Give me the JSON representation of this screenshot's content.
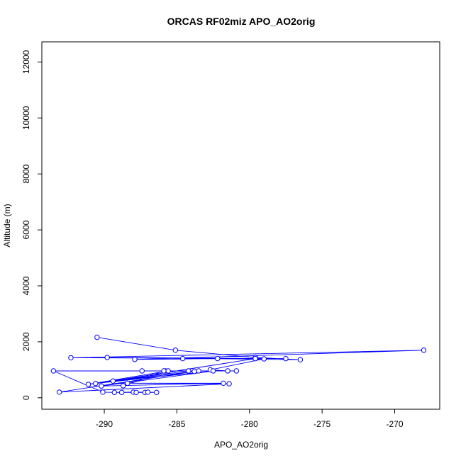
{
  "chart_data": {
    "type": "line",
    "title": "ORCAS RF02miz APO_AO2orig",
    "xlabel": "APO_AO2orig",
    "ylabel": "Altitude (m)",
    "xlim": [
      -294.3,
      -266.9
    ],
    "ylim": [
      -410,
      12720
    ],
    "x_ticks": [
      -290,
      -285,
      -280,
      -275,
      -270
    ],
    "y_ticks": [
      0,
      2000,
      4000,
      6000,
      8000,
      10000,
      12000
    ],
    "marker": "open-circle",
    "line_color": "#0000ff",
    "grid": false,
    "series": [
      {
        "points": [
          {
            "x": -290.5,
            "y": 2160
          },
          {
            "x": -285.1,
            "y": 1700
          },
          {
            "x": -279.6,
            "y": 1440
          },
          {
            "x": -276.5,
            "y": 1360
          },
          {
            "x": -289.8,
            "y": 1440
          },
          {
            "x": -277.5,
            "y": 1400
          },
          {
            "x": -292.3,
            "y": 1430
          },
          {
            "x": -268.0,
            "y": 1700
          },
          {
            "x": -287.9,
            "y": 1370
          },
          {
            "x": -282.2,
            "y": 1400
          },
          {
            "x": -284.6,
            "y": 1400
          },
          {
            "x": -279.0,
            "y": 1390
          },
          {
            "x": -282.7,
            "y": 1000
          },
          {
            "x": -281.5,
            "y": 960
          },
          {
            "x": -287.4,
            "y": 960
          },
          {
            "x": -283.5,
            "y": 960
          },
          {
            "x": -280.9,
            "y": 960
          },
          {
            "x": -285.8,
            "y": 960
          },
          {
            "x": -284.2,
            "y": 960
          },
          {
            "x": -289.4,
            "y": 600
          },
          {
            "x": -279.6,
            "y": 1400
          },
          {
            "x": -290.6,
            "y": 510
          },
          {
            "x": -282.5,
            "y": 960
          },
          {
            "x": -290.2,
            "y": 420
          },
          {
            "x": -281.8,
            "y": 520
          },
          {
            "x": -288.4,
            "y": 520
          },
          {
            "x": -281.4,
            "y": 500
          },
          {
            "x": -293.1,
            "y": 200
          },
          {
            "x": -283.8,
            "y": 940
          },
          {
            "x": -291.1,
            "y": 480
          },
          {
            "x": -285.6,
            "y": 960
          },
          {
            "x": -288.7,
            "y": 430
          },
          {
            "x": -285.9,
            "y": 960
          },
          {
            "x": -293.5,
            "y": 960
          },
          {
            "x": -290.1,
            "y": 200
          },
          {
            "x": -289.3,
            "y": 190
          },
          {
            "x": -288.0,
            "y": 200
          },
          {
            "x": -287.2,
            "y": 190
          },
          {
            "x": -288.8,
            "y": 190
          },
          {
            "x": -287.0,
            "y": 200
          },
          {
            "x": -286.4,
            "y": 190
          },
          {
            "x": -287.8,
            "y": 190
          }
        ]
      }
    ]
  }
}
